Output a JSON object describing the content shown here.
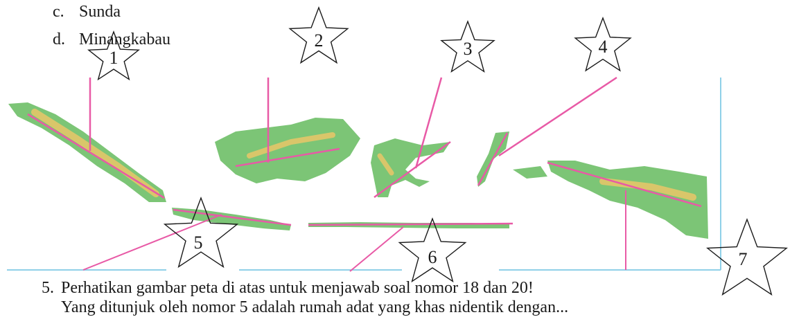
{
  "options": [
    {
      "key": "c.",
      "text": "Sunda"
    },
    {
      "key": "d.",
      "text": "Minangkabau"
    }
  ],
  "star_labels": [
    "1",
    "2",
    "3",
    "4",
    "5",
    "6",
    "7"
  ],
  "questions": [
    {
      "number": "5.",
      "text": "Perhatikan gambar peta di atas untuk menjawab soal nomor 18 dan 20!"
    },
    {
      "number": "",
      "text": "Yang ditunjuk oleh nomor 5 adalah rumah adat yang khas nidentik dengan..."
    }
  ],
  "colors": {
    "land_green": "#7cc576",
    "highland": "#d9c66a",
    "pointer_line": "#e85aa6",
    "frame_line": "#8fd0e8",
    "text": "#1a1a1a"
  }
}
